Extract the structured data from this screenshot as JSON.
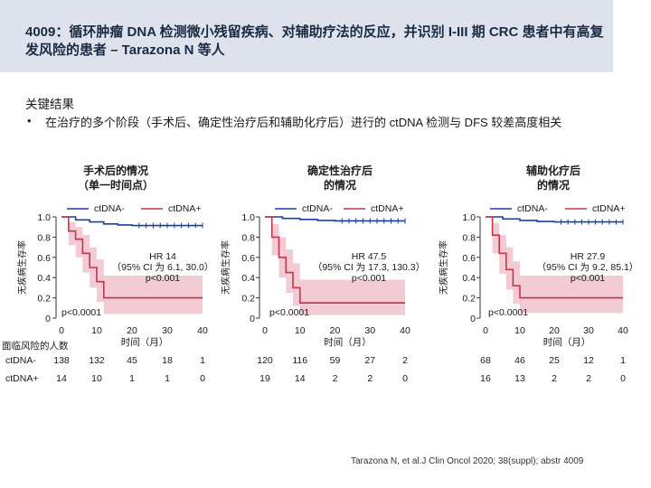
{
  "title": "4009：循环肿瘤 DNA 检测微小残留疾病、对辅助疗法的反应，并识别 I-III 期 CRC 患者中有高复发风险的患者 – Tarazona N 等人",
  "section_title": "关键结果",
  "bullet_symbol": "•",
  "bullet_text": "在治疗的多个阶段（手术后、确定性治疗后和辅助化疗后）进行的 ctDNA 检测与 DFS 较差高度相关",
  "footer": "Tarazona N, et al.J Clin Oncol 2020; 38(suppl); abstr 4009",
  "colors": {
    "negative": "#1a3fa0",
    "positive": "#c8334a",
    "positive_fill": "#f1c5cf",
    "header": "#dde2ec"
  },
  "risk_label": "面临风险的人数",
  "ylabel": "无疾病生存率",
  "chart_data": [
    {
      "type": "line",
      "title": "手术后的情况\n（单一时间点）",
      "xlabel": "时间（月）",
      "ylabel": "无疾病生存率",
      "xlim": [
        0,
        40
      ],
      "ylim": [
        0,
        1.0
      ],
      "xticks": [
        "0",
        "10",
        "20",
        "30",
        "40"
      ],
      "yticks": [
        "0",
        "0.2",
        "0.4",
        "0.6",
        "0.8",
        "1.0"
      ],
      "legend": [
        "ctDNA-",
        "ctDNA+"
      ],
      "hr_text": "HR 14",
      "ci_text": "（95% CI 为 6.1, 30.0）",
      "p_text": "p<0.001",
      "logrank_text": "p<0.0001",
      "series": [
        {
          "name": "ctDNA-",
          "x": [
            0,
            4,
            8,
            12,
            16,
            20,
            40
          ],
          "y": [
            1.0,
            0.97,
            0.95,
            0.93,
            0.92,
            0.915,
            0.915
          ]
        },
        {
          "name": "ctDNA+",
          "x": [
            0,
            2,
            4,
            6,
            8,
            10,
            12,
            14,
            40
          ],
          "y": [
            1.0,
            0.86,
            0.78,
            0.64,
            0.5,
            0.36,
            0.2,
            0.2,
            0.2
          ],
          "ci_low": [
            1.0,
            0.72,
            0.6,
            0.45,
            0.3,
            0.16,
            0.04,
            0.04,
            0.04
          ],
          "ci_high": [
            1.0,
            0.95,
            0.9,
            0.82,
            0.7,
            0.58,
            0.42,
            0.42,
            0.42
          ]
        }
      ],
      "risk_table": {
        "ctDNA-": [
          "138",
          "132",
          "45",
          "18",
          "1"
        ],
        "ctDNA+": [
          "14",
          "10",
          "1",
          "1",
          "0"
        ]
      }
    },
    {
      "type": "line",
      "title": "确定性治疗后\n的情况",
      "xlabel": "时间（月）",
      "ylabel": "无疾病生存率",
      "xlim": [
        0,
        40
      ],
      "ylim": [
        0,
        1.0
      ],
      "xticks": [
        "0",
        "10",
        "20",
        "30",
        "40"
      ],
      "yticks": [
        "0",
        "0.2",
        "0.4",
        "0.6",
        "0.8",
        "1.0"
      ],
      "legend": [
        "ctDNA-",
        "ctDNA+"
      ],
      "hr_text": "HR 47.5",
      "ci_text": "（95% CI 为 17.3, 130.3）",
      "p_text": "p<0.001",
      "logrank_text": "p<0.0001",
      "series": [
        {
          "name": "ctDNA-",
          "x": [
            0,
            5,
            10,
            15,
            20,
            40
          ],
          "y": [
            1.0,
            0.985,
            0.975,
            0.965,
            0.96,
            0.96
          ]
        },
        {
          "name": "ctDNA+",
          "x": [
            0,
            2,
            4,
            6,
            8,
            10,
            12,
            40
          ],
          "y": [
            1.0,
            0.8,
            0.6,
            0.45,
            0.3,
            0.15,
            0.15,
            0.15
          ],
          "ci_low": [
            1.0,
            0.62,
            0.4,
            0.25,
            0.12,
            0.03,
            0.03,
            0.03
          ],
          "ci_high": [
            1.0,
            0.93,
            0.8,
            0.68,
            0.54,
            0.38,
            0.38,
            0.38
          ]
        }
      ],
      "risk_table": {
        "ctDNA-": [
          "120",
          "116",
          "59",
          "27",
          "2"
        ],
        "ctDNA+": [
          "19",
          "14",
          "2",
          "2",
          "0"
        ]
      }
    },
    {
      "type": "line",
      "title": "辅助化疗后\n的情况",
      "xlabel": "时间（月）",
      "ylabel": "无疾病生存率",
      "xlim": [
        0,
        40
      ],
      "ylim": [
        0,
        1.0
      ],
      "xticks": [
        "0",
        "10",
        "20",
        "30",
        "40"
      ],
      "yticks": [
        "0",
        "0.2",
        "0.4",
        "0.6",
        "0.8",
        "1.0"
      ],
      "legend": [
        "ctDNA-",
        "ctDNA+"
      ],
      "hr_text": "HR 27.9",
      "ci_text": "（95% CI 为 9.2, 85.1）",
      "p_text": "p<0.001",
      "logrank_text": "p<0.0001",
      "series": [
        {
          "name": "ctDNA-",
          "x": [
            0,
            5,
            10,
            15,
            20,
            40
          ],
          "y": [
            1.0,
            0.98,
            0.965,
            0.955,
            0.95,
            0.95
          ]
        },
        {
          "name": "ctDNA+",
          "x": [
            0,
            2,
            4,
            6,
            8,
            10,
            12,
            40
          ],
          "y": [
            1.0,
            0.82,
            0.64,
            0.48,
            0.32,
            0.2,
            0.2,
            0.2
          ],
          "ci_low": [
            1.0,
            0.64,
            0.44,
            0.28,
            0.14,
            0.05,
            0.05,
            0.05
          ],
          "ci_high": [
            1.0,
            0.94,
            0.82,
            0.7,
            0.56,
            0.42,
            0.42,
            0.42
          ]
        }
      ],
      "risk_table": {
        "ctDNA-": [
          "68",
          "46",
          "25",
          "12",
          "1"
        ],
        "ctDNA+": [
          "16",
          "13",
          "2",
          "2",
          "0"
        ]
      }
    }
  ]
}
